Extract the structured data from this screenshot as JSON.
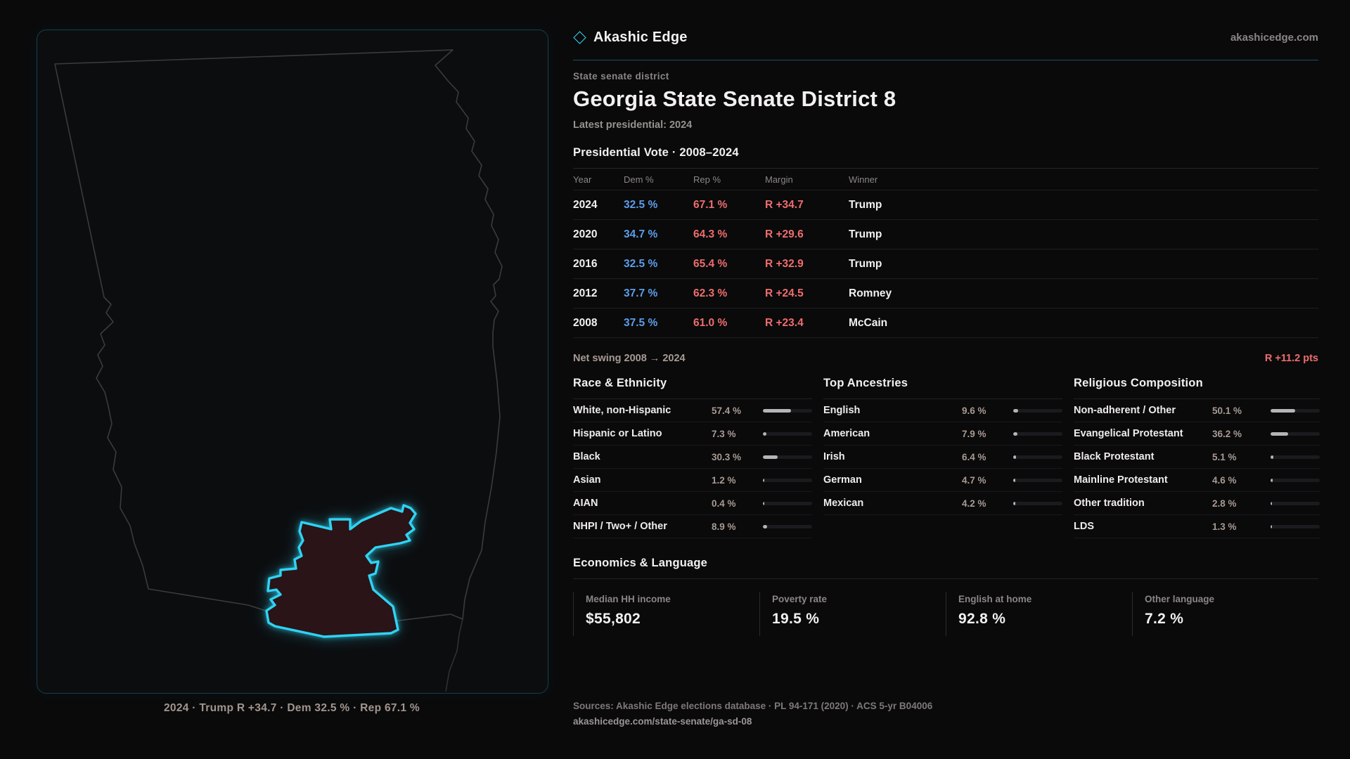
{
  "brand": {
    "name": "Akashic Edge",
    "site": "akashicedge.com"
  },
  "page": {
    "kicker": "State senate district",
    "title": "Georgia State Senate District 8",
    "latest": "Latest presidential: 2024"
  },
  "map": {
    "caption": "2024 · Trump R +34.7 · Dem 32.5 % · Rep 67.1 %"
  },
  "vote_table": {
    "title": "Presidential Vote · 2008–2024",
    "columns": [
      "Year",
      "Dem %",
      "Rep %",
      "Margin",
      "Winner"
    ],
    "rows": [
      {
        "year": "2024",
        "dem": "32.5 %",
        "rep": "67.1 %",
        "margin": "R +34.7",
        "winner": "Trump"
      },
      {
        "year": "2020",
        "dem": "34.7 %",
        "rep": "64.3 %",
        "margin": "R +29.6",
        "winner": "Trump"
      },
      {
        "year": "2016",
        "dem": "32.5 %",
        "rep": "65.4 %",
        "margin": "R +32.9",
        "winner": "Trump"
      },
      {
        "year": "2012",
        "dem": "37.7 %",
        "rep": "62.3 %",
        "margin": "R +24.5",
        "winner": "Romney"
      },
      {
        "year": "2008",
        "dem": "37.5 %",
        "rep": "61.0 %",
        "margin": "R +23.4",
        "winner": "McCain"
      }
    ]
  },
  "net_swing": {
    "label": "Net swing 2008 → 2024",
    "value": "R +11.2 pts"
  },
  "demographics": [
    {
      "title": "Race & Ethnicity",
      "rows": [
        {
          "label": "White, non-Hispanic",
          "value": "57.4 %",
          "pct": 57.4
        },
        {
          "label": "Hispanic or Latino",
          "value": "7.3 %",
          "pct": 7.3
        },
        {
          "label": "Black",
          "value": "30.3 %",
          "pct": 30.3
        },
        {
          "label": "Asian",
          "value": "1.2 %",
          "pct": 1.2
        },
        {
          "label": "AIAN",
          "value": "0.4 %",
          "pct": 0.4
        },
        {
          "label": "NHPI / Two+ / Other",
          "value": "8.9 %",
          "pct": 8.9
        }
      ]
    },
    {
      "title": "Top Ancestries",
      "rows": [
        {
          "label": "English",
          "value": "9.6 %",
          "pct": 9.6
        },
        {
          "label": "American",
          "value": "7.9 %",
          "pct": 7.9
        },
        {
          "label": "Irish",
          "value": "6.4 %",
          "pct": 6.4
        },
        {
          "label": "German",
          "value": "4.7 %",
          "pct": 4.7
        },
        {
          "label": "Mexican",
          "value": "4.2 %",
          "pct": 4.2
        }
      ]
    },
    {
      "title": "Religious Composition",
      "rows": [
        {
          "label": "Non-adherent / Other",
          "value": "50.1 %",
          "pct": 50.1
        },
        {
          "label": "Evangelical Protestant",
          "value": "36.2 %",
          "pct": 36.2
        },
        {
          "label": "Black Protestant",
          "value": "5.1 %",
          "pct": 5.1
        },
        {
          "label": "Mainline Protestant",
          "value": "4.6 %",
          "pct": 4.6
        },
        {
          "label": "Other tradition",
          "value": "2.8 %",
          "pct": 2.8
        },
        {
          "label": "LDS",
          "value": "1.3 %",
          "pct": 1.3
        }
      ]
    }
  ],
  "economics": {
    "title": "Economics & Language",
    "stats": [
      {
        "label": "Median HH income",
        "value": "$55,802"
      },
      {
        "label": "Poverty rate",
        "value": "19.5 %"
      },
      {
        "label": "English at home",
        "value": "92.8 %"
      },
      {
        "label": "Other language",
        "value": "7.2 %"
      }
    ]
  },
  "footer": {
    "sources": "Sources: Akashic Edge elections database · PL 94-171 (2020) · ACS 5-yr B04006",
    "permalink": "akashicedge.com/state-senate/ga-sd-08"
  },
  "colors": {
    "accent_cyan": "#35d6f5",
    "dem_blue": "#5d9ee8",
    "rep_red": "#ef6d6d",
    "district_fill": "#2a1417",
    "state_outline": "#3b3b3e",
    "panel_border": "#17404b"
  }
}
